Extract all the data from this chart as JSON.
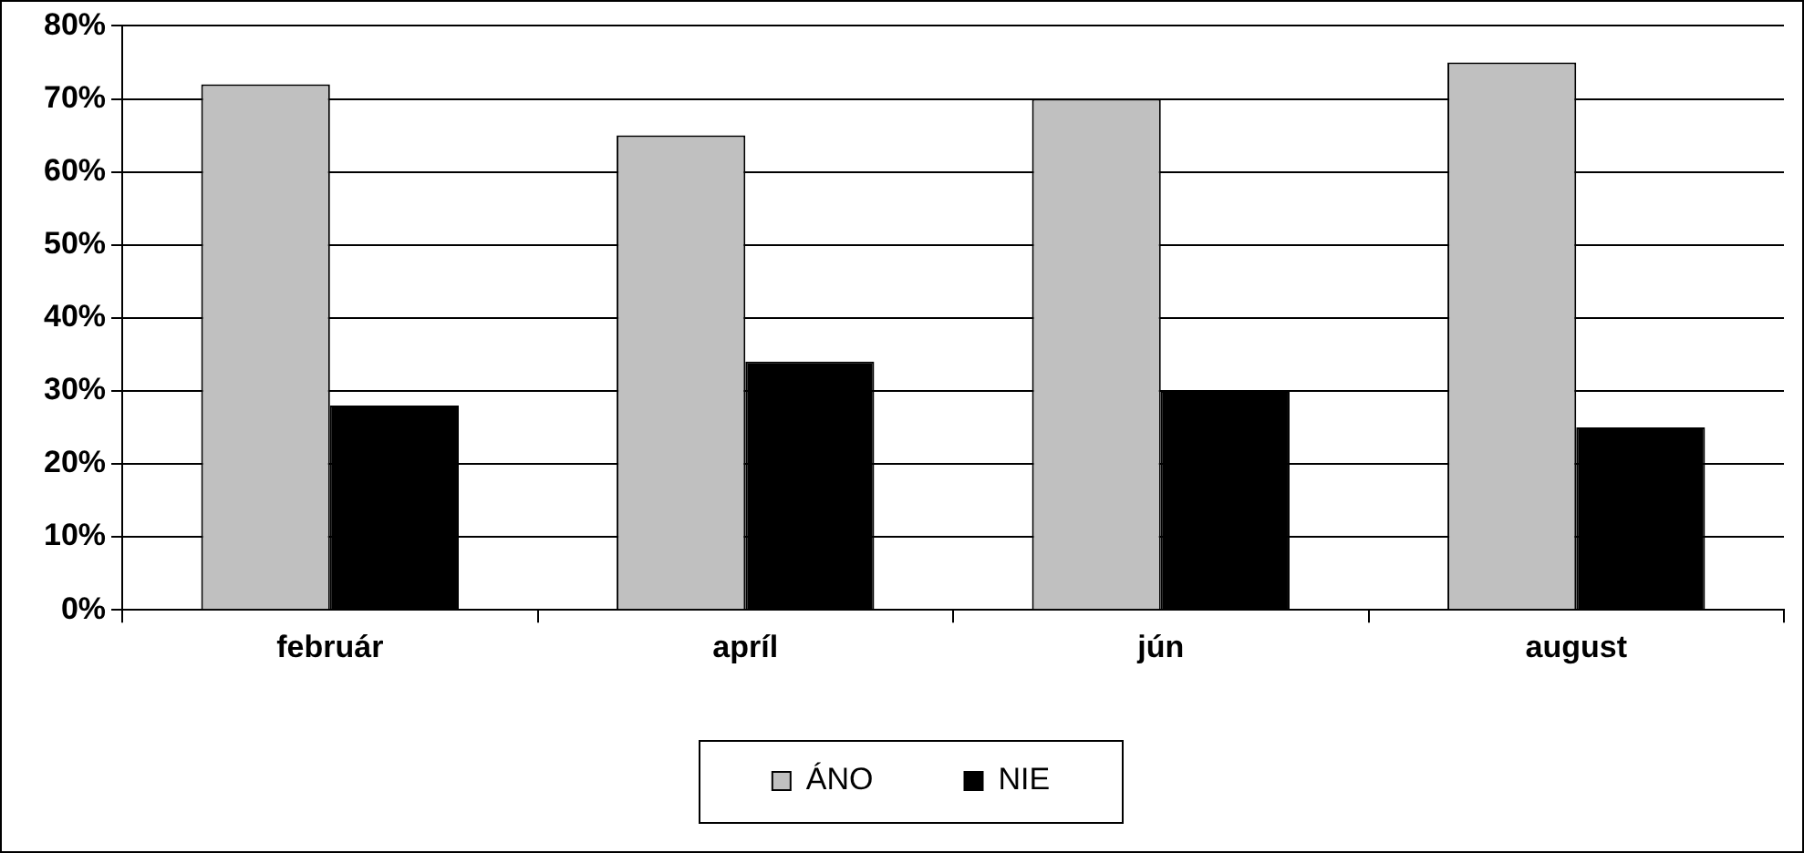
{
  "chart_data": {
    "type": "bar",
    "categories": [
      "február",
      "apríl",
      "jún",
      "august"
    ],
    "series": [
      {
        "name": "ÁNO",
        "color": "#c0c0c0",
        "values": [
          72,
          65,
          70,
          75
        ]
      },
      {
        "name": "NIE",
        "color": "#000000",
        "values": [
          28,
          34,
          30,
          25
        ]
      }
    ],
    "ylim": [
      0,
      80
    ],
    "yticks": [
      {
        "value": 0,
        "label": "0%"
      },
      {
        "value": 10,
        "label": "10%"
      },
      {
        "value": 20,
        "label": "20%"
      },
      {
        "value": 30,
        "label": "30%"
      },
      {
        "value": 40,
        "label": "40%"
      },
      {
        "value": 50,
        "label": "50%"
      },
      {
        "value": 60,
        "label": "60%"
      },
      {
        "value": 70,
        "label": "70%"
      },
      {
        "value": 80,
        "label": "80%"
      }
    ],
    "grid": "y",
    "legend": "bottom"
  }
}
